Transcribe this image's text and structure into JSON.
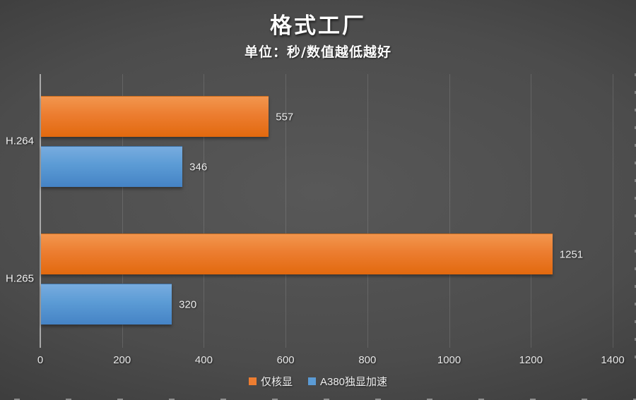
{
  "title": "格式工厂",
  "subtitle": "单位：秒/数值越低越好",
  "chart_data": {
    "type": "bar",
    "orientation": "horizontal",
    "title": "格式工厂",
    "subtitle": "单位：秒/数值越低越好",
    "categories": [
      "H.264",
      "H.265"
    ],
    "series": [
      {
        "name": "仅核显",
        "color": "#ED7D31",
        "values": [
          557,
          1251
        ]
      },
      {
        "name": "A380独显加速",
        "color": "#5B9BD5",
        "values": [
          346,
          320
        ]
      }
    ],
    "xlim": [
      0,
      1400
    ],
    "xticks": [
      0,
      200,
      400,
      600,
      800,
      1000,
      1200,
      1400
    ],
    "grid": true,
    "value_labels": true,
    "legend_position": "bottom",
    "lower_is_better": true
  },
  "colors": {
    "background_center": "#585858",
    "background_edge": "#2A2A2A",
    "axis_line": "#A9A9A9",
    "gridline": "rgba(255,255,255,0.13)",
    "text": "#ECECEC",
    "series_orange": "#ED7D31",
    "series_blue": "#5B9BD5"
  }
}
